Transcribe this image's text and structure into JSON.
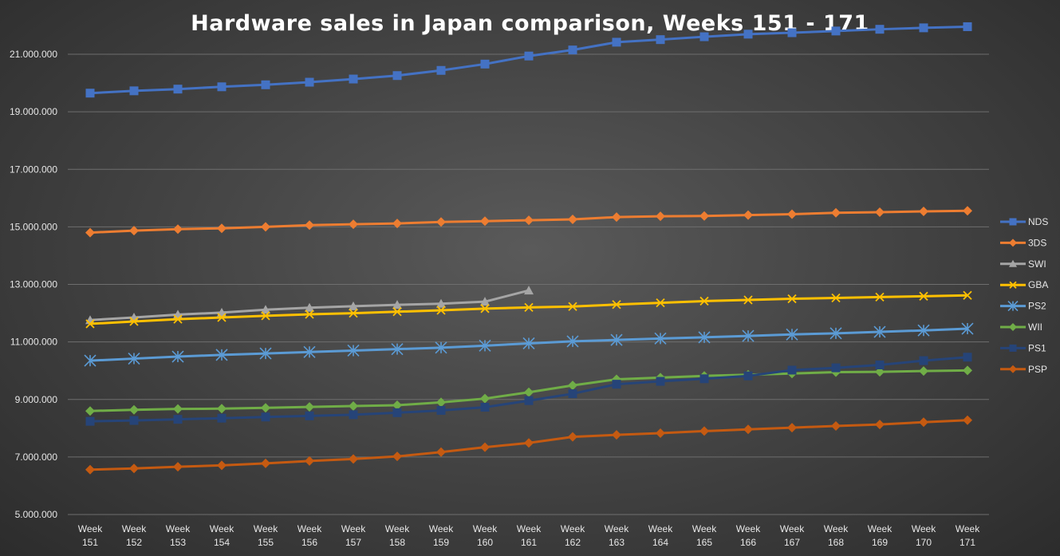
{
  "chart_data": {
    "type": "line",
    "title": "Hardware sales in Japan comparison,  Weeks 151 - 171",
    "xlabel": "",
    "ylabel": "",
    "ylim": [
      5000000,
      22000000
    ],
    "yticks": [
      5000000,
      7000000,
      9000000,
      11000000,
      13000000,
      15000000,
      17000000,
      19000000,
      21000000
    ],
    "ytick_labels": [
      "5.000.000",
      "7.000.000",
      "9.000.000",
      "11.000.000",
      "13.000.000",
      "15.000.000",
      "17.000.000",
      "19.000.000",
      "21.000.000"
    ],
    "categories": [
      [
        "Week",
        "151"
      ],
      [
        "Week",
        "152"
      ],
      [
        "Week",
        "153"
      ],
      [
        "Week",
        "154"
      ],
      [
        "Week",
        "155"
      ],
      [
        "Week",
        "156"
      ],
      [
        "Week",
        "157"
      ],
      [
        "Week",
        "158"
      ],
      [
        "Week",
        "159"
      ],
      [
        "Week",
        "160"
      ],
      [
        "Week",
        "161"
      ],
      [
        "Week",
        "162"
      ],
      [
        "Week",
        "163"
      ],
      [
        "Week",
        "164"
      ],
      [
        "Week",
        "165"
      ],
      [
        "Week",
        "166"
      ],
      [
        "Week",
        "167"
      ],
      [
        "Week",
        "168"
      ],
      [
        "Week",
        "169"
      ],
      [
        "Week",
        "170"
      ],
      [
        "Week",
        "171"
      ]
    ],
    "grid": true,
    "legend_position": "right",
    "series": [
      {
        "name": "NDS",
        "color": "#4472c4",
        "marker": "square",
        "values": [
          19650000,
          19730000,
          19790000,
          19870000,
          19940000,
          20030000,
          20140000,
          20260000,
          20440000,
          20660000,
          20940000,
          21150000,
          21420000,
          21510000,
          21610000,
          21700000,
          21750000,
          21810000,
          21870000,
          21920000,
          21960000
        ]
      },
      {
        "name": "3DS",
        "color": "#ed7d31",
        "marker": "diamond",
        "values": [
          14800000,
          14870000,
          14920000,
          14950000,
          15000000,
          15060000,
          15090000,
          15120000,
          15170000,
          15200000,
          15230000,
          15260000,
          15340000,
          15370000,
          15380000,
          15410000,
          15440000,
          15490000,
          15510000,
          15540000,
          15560000
        ]
      },
      {
        "name": "SWI",
        "color": "#a5a5a5",
        "marker": "triangle",
        "values": [
          11760000,
          11850000,
          11950000,
          12020000,
          12120000,
          12190000,
          12240000,
          12290000,
          12330000,
          12400000,
          12790000,
          null,
          null,
          null,
          null,
          null,
          null,
          null,
          null,
          null,
          null
        ]
      },
      {
        "name": "GBA",
        "color": "#ffc000",
        "marker": "x",
        "values": [
          11630000,
          11710000,
          11790000,
          11850000,
          11910000,
          11960000,
          12000000,
          12050000,
          12100000,
          12160000,
          12200000,
          12230000,
          12300000,
          12360000,
          12420000,
          12460000,
          12500000,
          12530000,
          12560000,
          12590000,
          12620000
        ]
      },
      {
        "name": "PS2",
        "color": "#5b9bd5",
        "marker": "star",
        "values": [
          10350000,
          10420000,
          10490000,
          10550000,
          10600000,
          10650000,
          10700000,
          10750000,
          10800000,
          10870000,
          10950000,
          11020000,
          11070000,
          11120000,
          11160000,
          11210000,
          11260000,
          11300000,
          11350000,
          11400000,
          11460000
        ]
      },
      {
        "name": "WII",
        "color": "#70ad47",
        "marker": "diamond",
        "values": [
          8600000,
          8640000,
          8670000,
          8680000,
          8710000,
          8740000,
          8770000,
          8800000,
          8900000,
          9030000,
          9250000,
          9490000,
          9700000,
          9760000,
          9820000,
          9860000,
          9900000,
          9950000,
          9960000,
          9990000,
          10010000
        ]
      },
      {
        "name": "PS1",
        "color": "#264478",
        "marker": "square",
        "values": [
          8240000,
          8270000,
          8310000,
          8350000,
          8390000,
          8430000,
          8470000,
          8540000,
          8620000,
          8730000,
          8960000,
          9200000,
          9530000,
          9630000,
          9720000,
          9820000,
          10020000,
          10100000,
          10200000,
          10350000,
          10470000
        ]
      },
      {
        "name": "PSP",
        "color": "#c55a11",
        "marker": "diamond",
        "values": [
          6560000,
          6600000,
          6660000,
          6710000,
          6780000,
          6860000,
          6930000,
          7020000,
          7170000,
          7340000,
          7490000,
          7700000,
          7770000,
          7830000,
          7900000,
          7960000,
          8020000,
          8080000,
          8130000,
          8210000,
          8280000
        ]
      }
    ]
  }
}
